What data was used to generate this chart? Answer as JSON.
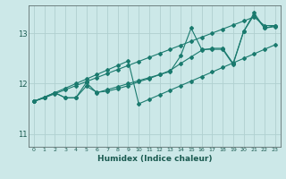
{
  "title": "",
  "xlabel": "Humidex (Indice chaleur)",
  "bg_color": "#cce8e8",
  "grid_color": "#b0d0d0",
  "line_color": "#1a7a6e",
  "xlim": [
    -0.5,
    23.5
  ],
  "ylim": [
    10.75,
    13.55
  ],
  "yticks": [
    11,
    12,
    13
  ],
  "xticks": [
    0,
    1,
    2,
    3,
    4,
    5,
    6,
    7,
    8,
    9,
    10,
    11,
    12,
    13,
    14,
    15,
    16,
    17,
    18,
    19,
    20,
    21,
    22,
    23
  ],
  "series1_x": [
    0,
    1,
    2,
    3,
    4,
    5,
    6,
    7,
    8,
    9,
    10,
    11,
    12,
    13,
    14,
    15,
    16,
    17,
    18,
    19,
    20,
    21,
    22,
    23
  ],
  "series1_y": [
    11.65,
    11.72,
    11.82,
    11.72,
    11.72,
    12.02,
    11.82,
    11.88,
    11.94,
    12.0,
    12.06,
    12.12,
    12.18,
    12.24,
    12.55,
    13.1,
    12.68,
    12.68,
    12.68,
    12.38,
    13.03,
    13.4,
    13.1,
    13.15
  ],
  "series2_x": [
    0,
    2,
    3,
    4,
    5,
    6,
    7,
    8,
    9,
    10,
    11,
    12,
    13,
    14,
    15,
    16,
    17,
    18,
    19,
    20,
    21,
    22,
    23
  ],
  "series2_y": [
    11.65,
    11.82,
    11.72,
    11.72,
    11.95,
    11.83,
    11.85,
    11.9,
    11.96,
    12.04,
    12.1,
    12.18,
    12.26,
    12.4,
    12.53,
    12.66,
    12.7,
    12.7,
    12.4,
    13.03,
    13.36,
    13.1,
    13.13
  ],
  "series3_x": [
    0,
    1,
    2,
    3,
    4,
    5,
    6,
    7,
    8,
    9,
    10,
    11,
    12,
    13,
    14,
    15,
    16,
    17,
    18,
    19,
    20,
    21,
    22,
    23
  ],
  "series3_y": [
    11.65,
    11.73,
    11.82,
    11.91,
    12.0,
    12.09,
    12.18,
    12.27,
    12.36,
    12.45,
    11.6,
    11.69,
    11.78,
    11.87,
    11.96,
    12.05,
    12.14,
    12.23,
    12.32,
    12.41,
    12.5,
    12.59,
    12.68,
    12.77
  ],
  "series4_x": [
    0,
    1,
    2,
    3,
    4,
    5,
    6,
    7,
    8,
    9,
    10,
    11,
    12,
    13,
    14,
    15,
    16,
    17,
    18,
    19,
    20,
    21,
    22,
    23
  ],
  "series4_y": [
    11.65,
    11.72,
    11.8,
    11.88,
    11.96,
    12.04,
    12.12,
    12.2,
    12.28,
    12.36,
    12.44,
    12.52,
    12.6,
    12.68,
    12.76,
    12.84,
    12.92,
    13.0,
    13.08,
    13.16,
    13.24,
    13.32,
    13.15,
    13.15
  ]
}
